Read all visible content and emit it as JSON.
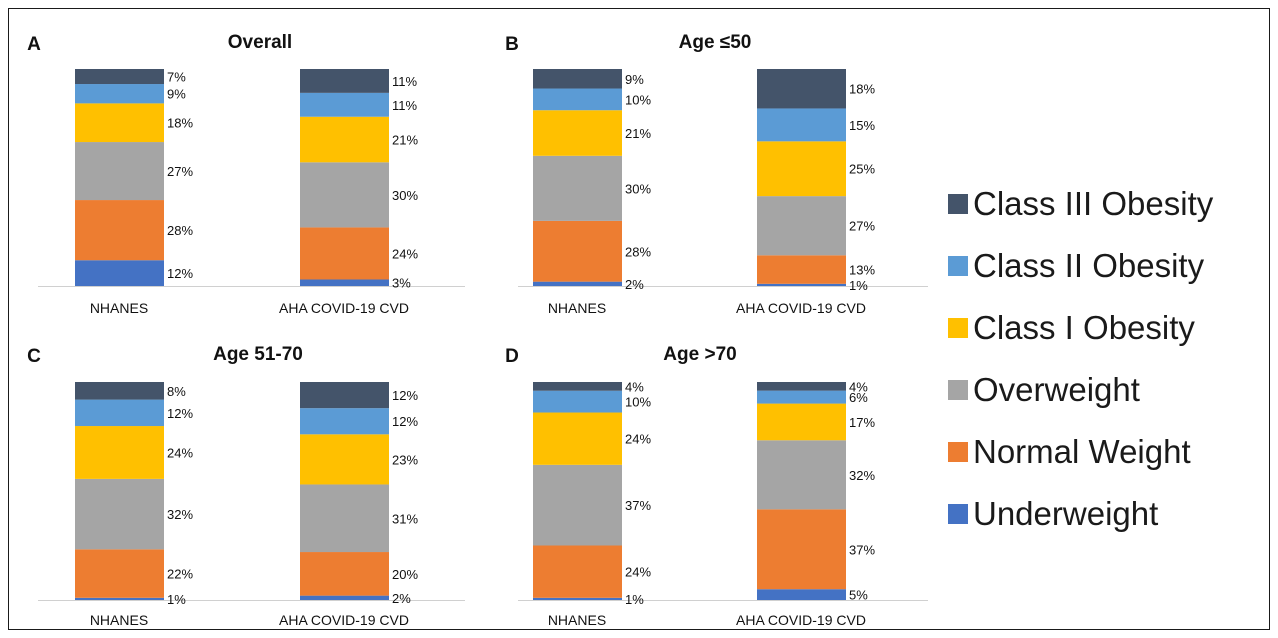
{
  "series": [
    {
      "name": "Underweight",
      "color": "#4472C4"
    },
    {
      "name": "Normal Weight",
      "color": "#ED7D31"
    },
    {
      "name": "Overweight",
      "color": "#A5A5A5"
    },
    {
      "name": "Class I Obesity",
      "color": "#FFC000"
    },
    {
      "name": "Class II Obesity",
      "color": "#5B9BD5"
    },
    {
      "name": "Class III Obesity",
      "color": "#44546A"
    }
  ],
  "legend": {
    "order": [
      "Class III Obesity",
      "Class II Obesity",
      "Class I Obesity",
      "Overweight",
      "Normal Weight",
      "Underweight"
    ],
    "placement": "right"
  },
  "chart_data": [
    {
      "type": "bar",
      "stacked": true,
      "panel_letter": "A",
      "title": "Overall",
      "categories": [
        "NHANES",
        "AHA COVID-19 CVD"
      ],
      "series": [
        {
          "name": "Underweight",
          "values": [
            12,
            3
          ],
          "labels": [
            "12%",
            "3%"
          ]
        },
        {
          "name": "Normal Weight",
          "values": [
            28,
            24
          ],
          "labels": [
            "28%",
            "24%"
          ]
        },
        {
          "name": "Overweight",
          "values": [
            27,
            30
          ],
          "labels": [
            "27%",
            "30%"
          ]
        },
        {
          "name": "Class I Obesity",
          "values": [
            18,
            21
          ],
          "labels": [
            "18%",
            "21%"
          ]
        },
        {
          "name": "Class II Obesity",
          "values": [
            9,
            11
          ],
          "labels": [
            "9%",
            "11%"
          ]
        },
        {
          "name": "Class III Obesity",
          "values": [
            7,
            11
          ],
          "labels": [
            "7%",
            "11%"
          ]
        }
      ]
    },
    {
      "type": "bar",
      "stacked": true,
      "panel_letter": "B",
      "title": "Age ≤50",
      "categories": [
        "NHANES",
        "AHA COVID-19 CVD"
      ],
      "series": [
        {
          "name": "Underweight",
          "values": [
            2,
            1
          ],
          "labels": [
            "2%",
            "1%"
          ]
        },
        {
          "name": "Normal Weight",
          "values": [
            28,
            13
          ],
          "labels": [
            "28%",
            "13%"
          ]
        },
        {
          "name": "Overweight",
          "values": [
            30,
            27
          ],
          "labels": [
            "30%",
            "27%"
          ]
        },
        {
          "name": "Class I Obesity",
          "values": [
            21,
            25
          ],
          "labels": [
            "21%",
            "25%"
          ]
        },
        {
          "name": "Class II Obesity",
          "values": [
            10,
            15
          ],
          "labels": [
            "10%",
            "15%"
          ]
        },
        {
          "name": "Class III Obesity",
          "values": [
            9,
            18
          ],
          "labels": [
            "9%",
            "18%"
          ]
        }
      ]
    },
    {
      "type": "bar",
      "stacked": true,
      "panel_letter": "C",
      "title": "Age 51-70",
      "categories": [
        "NHANES",
        "AHA COVID-19 CVD"
      ],
      "series": [
        {
          "name": "Underweight",
          "values": [
            1,
            2
          ],
          "labels": [
            "1%",
            "2%"
          ]
        },
        {
          "name": "Normal Weight",
          "values": [
            22,
            20
          ],
          "labels": [
            "22%",
            "20%"
          ]
        },
        {
          "name": "Overweight",
          "values": [
            32,
            31
          ],
          "labels": [
            "32%",
            "31%"
          ]
        },
        {
          "name": "Class I Obesity",
          "values": [
            24,
            23
          ],
          "labels": [
            "24%",
            "23%"
          ]
        },
        {
          "name": "Class II Obesity",
          "values": [
            12,
            12
          ],
          "labels": [
            "12%",
            "12%"
          ]
        },
        {
          "name": "Class III Obesity",
          "values": [
            8,
            12
          ],
          "labels": [
            "8%",
            "12%"
          ]
        }
      ]
    },
    {
      "type": "bar",
      "stacked": true,
      "panel_letter": "D",
      "title": "Age >70",
      "categories": [
        "NHANES",
        "AHA COVID-19 CVD"
      ],
      "series": [
        {
          "name": "Underweight",
          "values": [
            1,
            5
          ],
          "labels": [
            "1%",
            "5%"
          ]
        },
        {
          "name": "Normal Weight",
          "values": [
            24,
            37
          ],
          "labels": [
            "24%",
            "37%"
          ]
        },
        {
          "name": "Overweight",
          "values": [
            37,
            32
          ],
          "labels": [
            "37%",
            "32%"
          ]
        },
        {
          "name": "Class I Obesity",
          "values": [
            24,
            17
          ],
          "labels": [
            "24%",
            "17%"
          ]
        },
        {
          "name": "Class II Obesity",
          "values": [
            10,
            6
          ],
          "labels": [
            "10%",
            "6%"
          ]
        },
        {
          "name": "Class III Obesity",
          "values": [
            4,
            4
          ],
          "labels": [
            "4%",
            "4%"
          ]
        }
      ]
    }
  ]
}
